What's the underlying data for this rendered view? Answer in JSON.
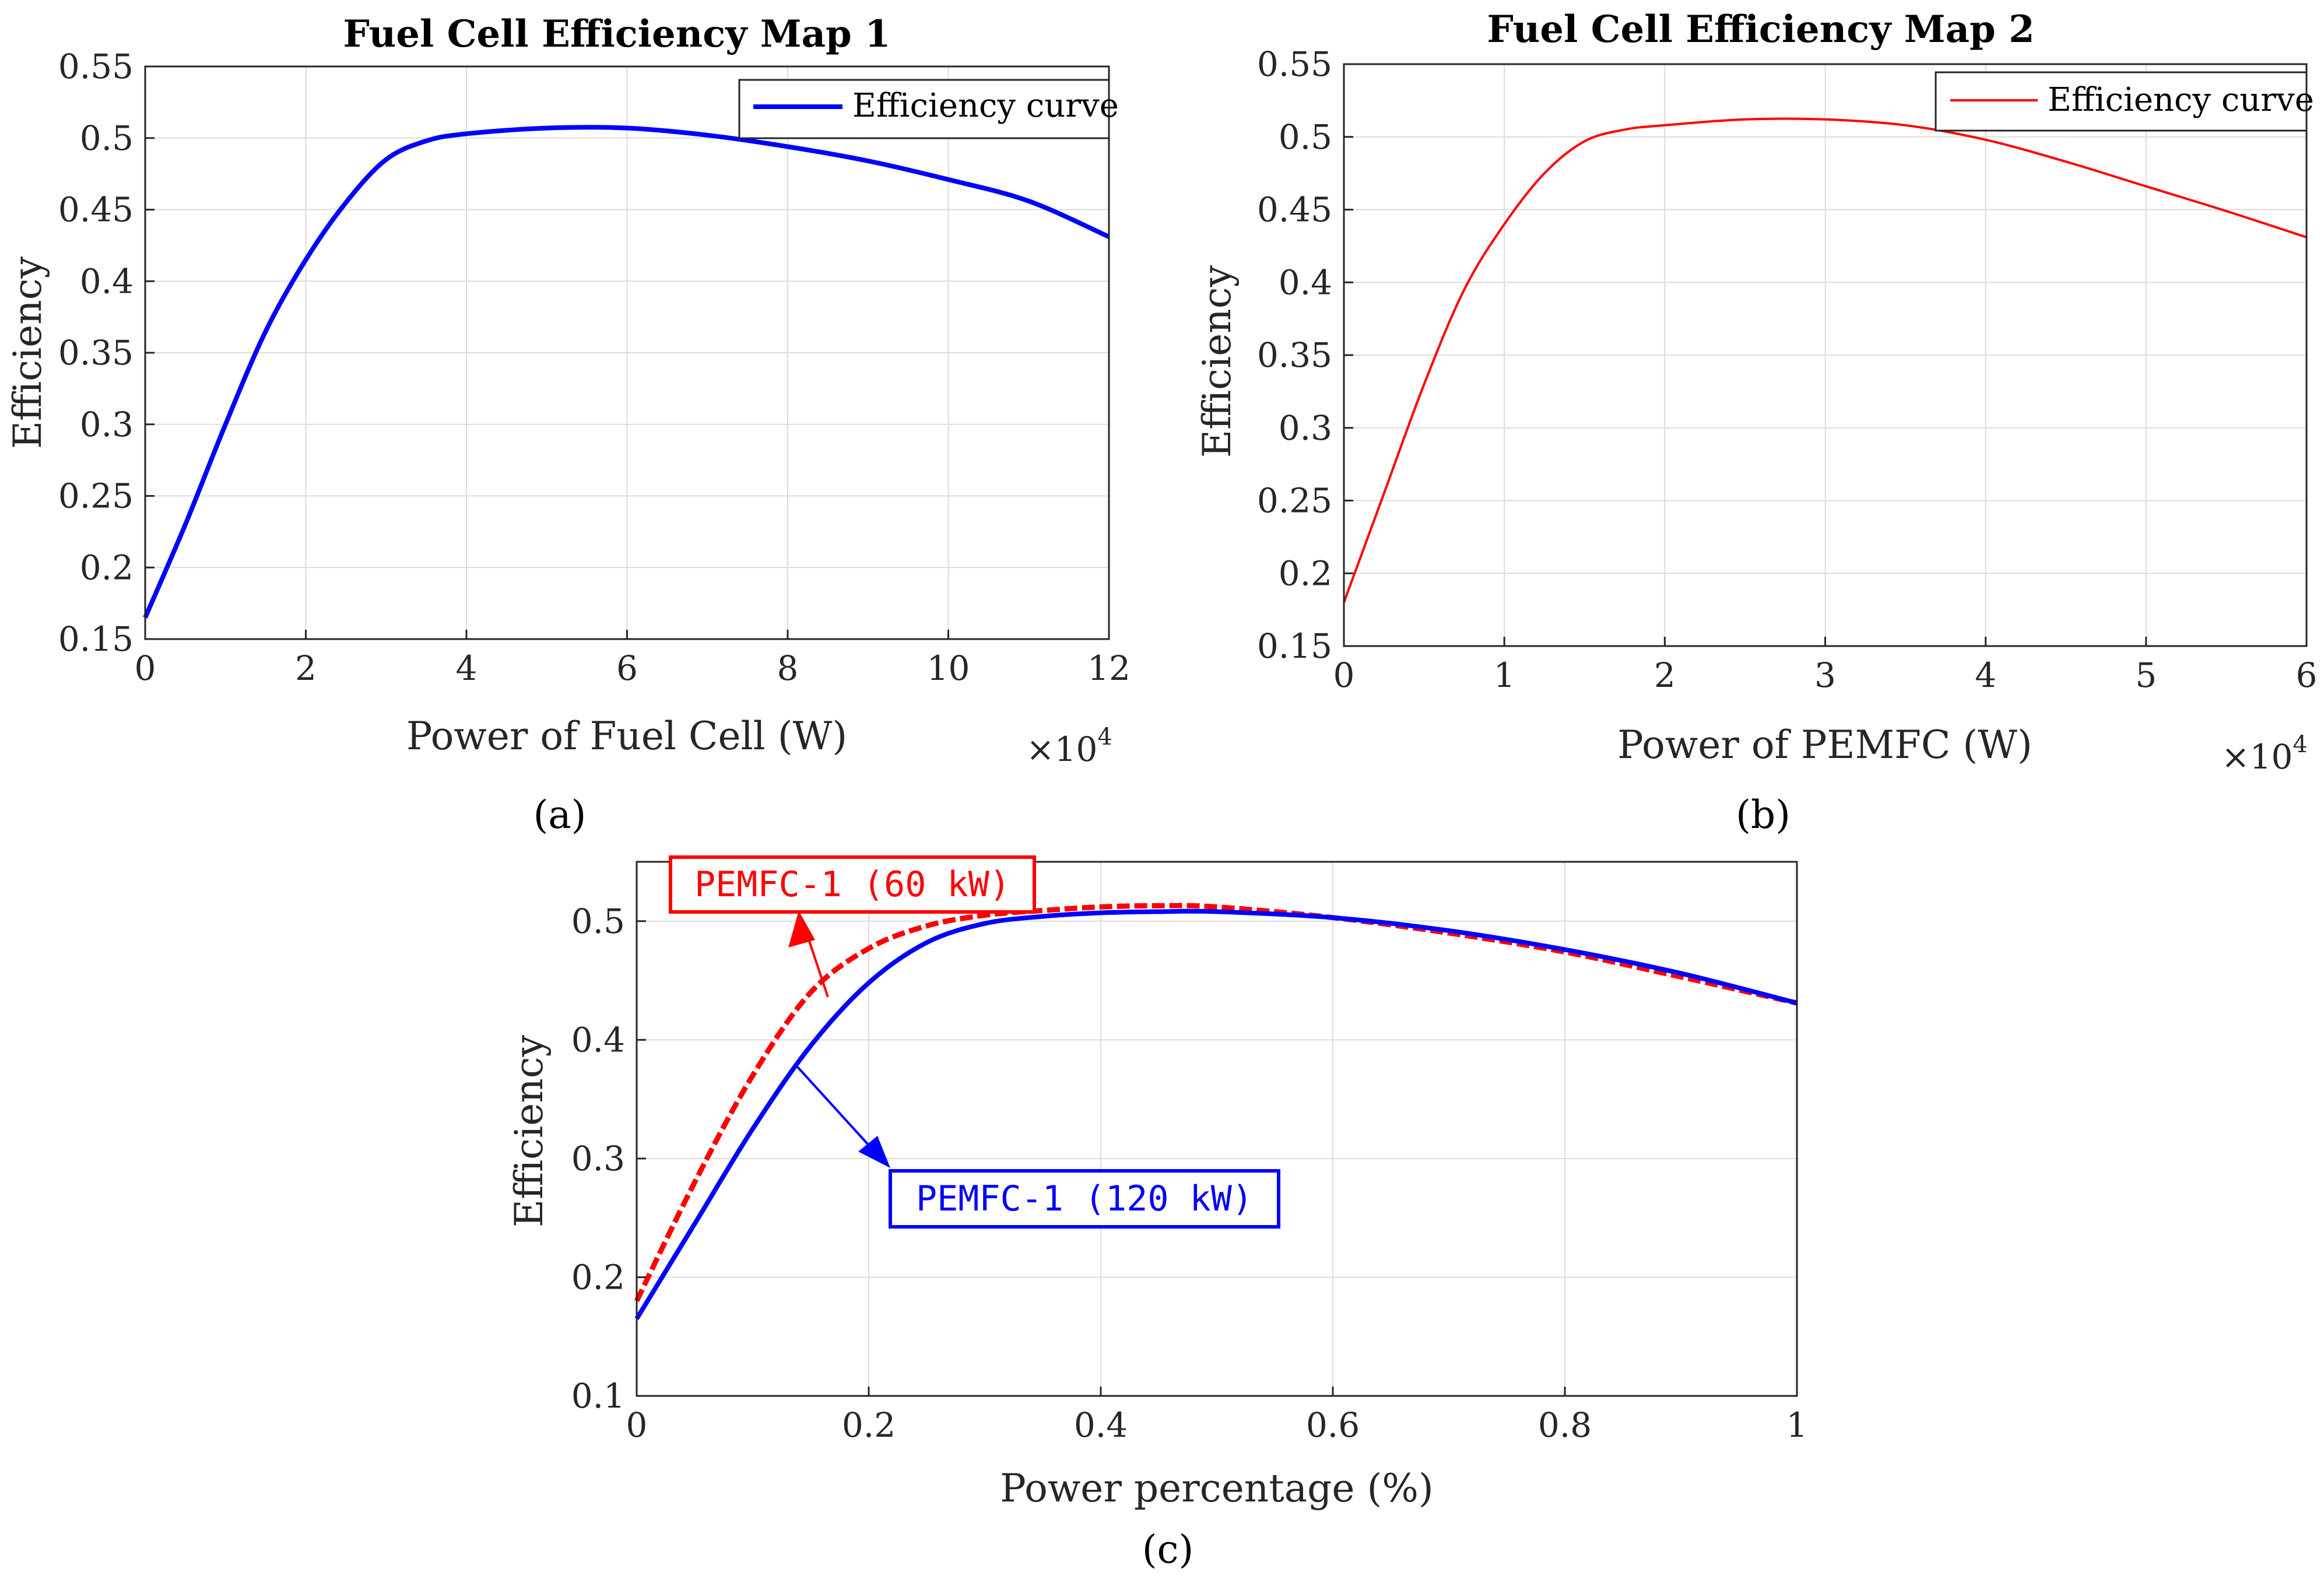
{
  "chart_data": [
    {
      "panel": "a",
      "type": "line",
      "title": "Fuel Cell Efficiency Map 1",
      "xlabel": "Power of Fuel Cell (W)",
      "ylabel": "Efficiency",
      "x_exponent": "×10",
      "x_exponent_power": "4",
      "xlim": [
        0,
        12
      ],
      "ylim": [
        0.15,
        0.55
      ],
      "xticks": [
        0,
        2,
        4,
        6,
        8,
        10,
        12
      ],
      "xtick_labels": [
        "0",
        "2",
        "4",
        "6",
        "8",
        "10",
        "12"
      ],
      "yticks": [
        0.15,
        0.2,
        0.25,
        0.3,
        0.35,
        0.4,
        0.45,
        0.5,
        0.55
      ],
      "ytick_labels": [
        "0.15",
        "0.2",
        "0.25",
        "0.3",
        "0.35",
        "0.4",
        "0.45",
        "0.5",
        "0.55"
      ],
      "grid": true,
      "legend": "top-right",
      "caption": "(a)",
      "series": [
        {
          "name": "Efficiency curve",
          "color": "#0000ff",
          "x": [
            0,
            0.5,
            1,
            1.5,
            2,
            2.5,
            3,
            3.5,
            4,
            5,
            6,
            7,
            8,
            9,
            10,
            11,
            12
          ],
          "y": [
            0.165,
            0.23,
            0.3,
            0.365,
            0.415,
            0.455,
            0.485,
            0.498,
            0.503,
            0.507,
            0.507,
            0.502,
            0.494,
            0.484,
            0.471,
            0.456,
            0.431
          ]
        }
      ]
    },
    {
      "panel": "b",
      "type": "line",
      "title": "Fuel Cell Efficiency Map 2",
      "xlabel": "Power of PEMFC (W)",
      "ylabel": "Efficiency",
      "x_exponent": "×10",
      "x_exponent_power": "4",
      "xlim": [
        0,
        6
      ],
      "ylim": [
        0.15,
        0.55
      ],
      "xticks": [
        0,
        1,
        2,
        3,
        4,
        5,
        6
      ],
      "xtick_labels": [
        "0",
        "1",
        "2",
        "3",
        "4",
        "5",
        "6"
      ],
      "yticks": [
        0.15,
        0.2,
        0.25,
        0.3,
        0.35,
        0.4,
        0.45,
        0.5,
        0.55
      ],
      "ytick_labels": [
        "0.15",
        "0.2",
        "0.25",
        "0.3",
        "0.35",
        "0.4",
        "0.45",
        "0.5",
        "0.55"
      ],
      "grid": true,
      "legend": "top-right",
      "caption": "(b)",
      "series": [
        {
          "name": "Efficiency curve",
          "color": "#ff0000",
          "x": [
            0,
            0.25,
            0.5,
            0.75,
            1,
            1.25,
            1.5,
            1.75,
            2,
            2.5,
            3,
            3.5,
            4,
            4.5,
            5,
            5.5,
            6
          ],
          "y": [
            0.18,
            0.255,
            0.33,
            0.395,
            0.44,
            0.475,
            0.497,
            0.505,
            0.508,
            0.512,
            0.512,
            0.508,
            0.498,
            0.483,
            0.466,
            0.449,
            0.431
          ]
        }
      ]
    },
    {
      "panel": "c",
      "type": "line",
      "title": "",
      "xlabel": "Power percentage (%)",
      "ylabel": "Efficiency",
      "xlim": [
        0,
        1
      ],
      "ylim": [
        0.1,
        0.55
      ],
      "xticks": [
        0,
        0.2,
        0.4,
        0.6,
        0.8,
        1
      ],
      "xtick_labels": [
        "0",
        "0.2",
        "0.4",
        "0.6",
        "0.8",
        "1"
      ],
      "yticks": [
        0.1,
        0.2,
        0.3,
        0.4,
        0.5
      ],
      "ytick_labels": [
        "0.1",
        "0.2",
        "0.3",
        "0.4",
        "0.5"
      ],
      "grid": true,
      "caption": "(c)",
      "series": [
        {
          "name": "PEMFC-1 (60 kW)",
          "color": "#ff0000",
          "style": "dashed",
          "x": [
            0,
            0.05,
            0.1,
            0.15,
            0.2,
            0.25,
            0.3,
            0.35,
            0.4,
            0.45,
            0.5,
            0.6,
            0.7,
            0.8,
            0.9,
            1
          ],
          "y": [
            0.18,
            0.28,
            0.37,
            0.44,
            0.477,
            0.496,
            0.505,
            0.509,
            0.512,
            0.513,
            0.512,
            0.503,
            0.49,
            0.474,
            0.453,
            0.431
          ]
        },
        {
          "name": "PEMFC-1 (120 kW)",
          "color": "#0000ff",
          "style": "solid",
          "x": [
            0,
            0.05,
            0.1,
            0.15,
            0.2,
            0.25,
            0.3,
            0.35,
            0.4,
            0.45,
            0.5,
            0.6,
            0.7,
            0.8,
            0.9,
            1
          ],
          "y": [
            0.165,
            0.245,
            0.325,
            0.395,
            0.448,
            0.482,
            0.498,
            0.504,
            0.507,
            0.508,
            0.508,
            0.503,
            0.492,
            0.476,
            0.456,
            0.431
          ]
        }
      ],
      "annotations": [
        {
          "text": "PEMFC-1 (60 kW)",
          "color": "#ff0000",
          "target": [
            0.14,
            0.42
          ]
        },
        {
          "text": "PEMFC-1 (120 kW)",
          "color": "#0000ff",
          "target": [
            0.14,
            0.39
          ]
        }
      ]
    }
  ]
}
